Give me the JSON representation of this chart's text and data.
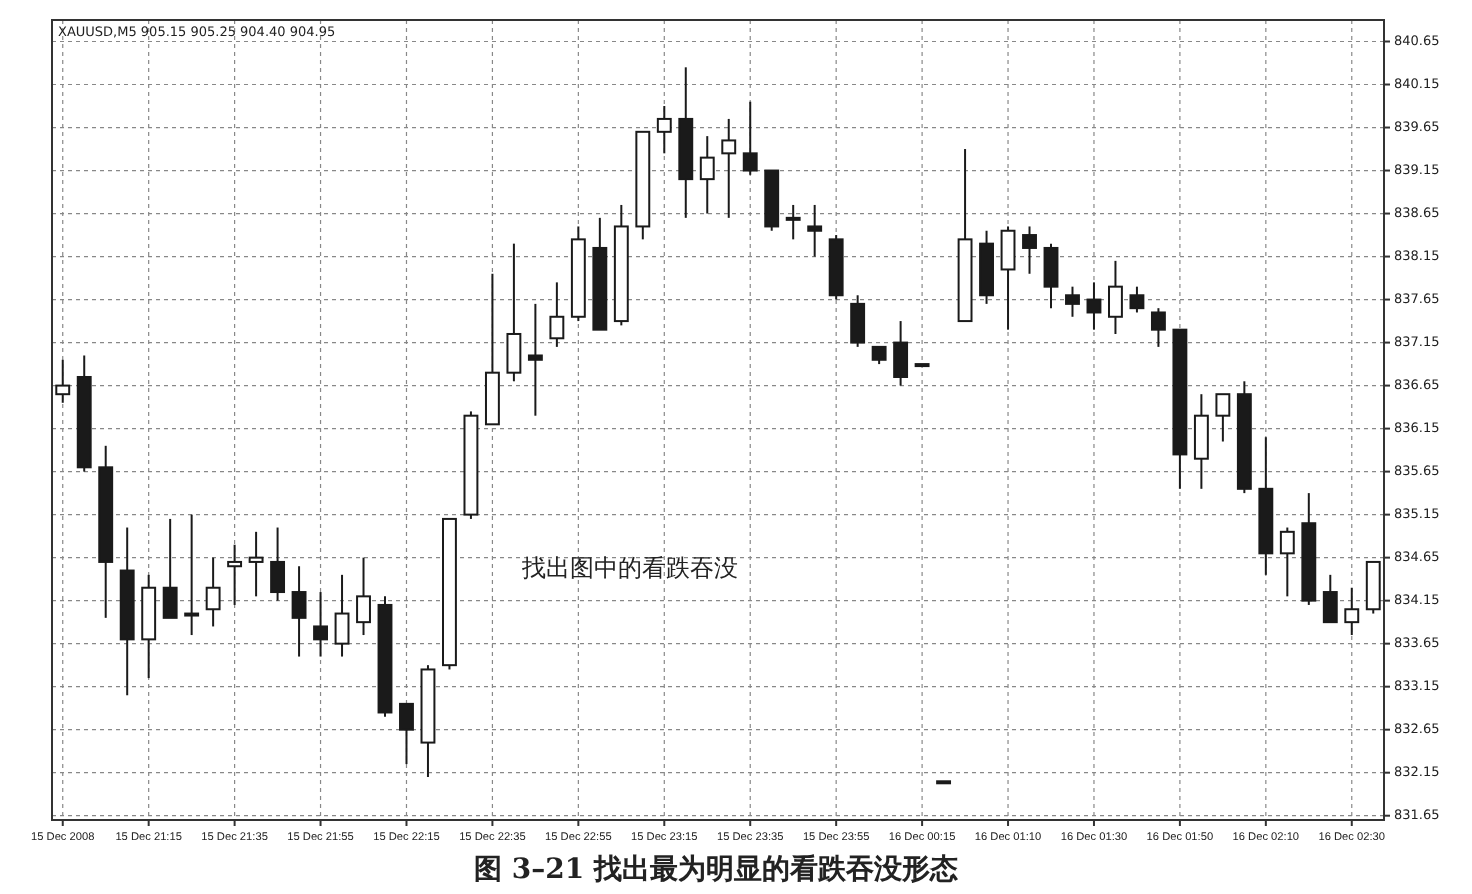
{
  "chart_data": {
    "type": "candlestick",
    "title": "XAUUSD,M5  905.15 905.25 904.40 904.95",
    "annotations": [
      "找出图中的看跌吞没",
      "图 3–21    找出最为明显的看跌吞没形态"
    ],
    "categories": [
      "15 Dec 2008",
      null,
      null,
      null,
      "15 Dec 21:15",
      null,
      null,
      null,
      "15 Dec 21:35",
      null,
      null,
      null,
      "15 Dec 21:55",
      null,
      null,
      null,
      "15 Dec 22:15",
      null,
      null,
      null,
      "15 Dec 22:35",
      null,
      null,
      null,
      "15 Dec 22:55",
      null,
      null,
      null,
      "15 Dec 23:15",
      null,
      null,
      null,
      "15 Dec 23:35",
      null,
      null,
      null,
      "15 Dec 23:55",
      null,
      null,
      null,
      "16 Dec 00:15",
      null,
      null,
      null,
      "16 Dec 01:10",
      null,
      null,
      null,
      "16 Dec 01:30",
      null,
      null,
      null,
      "16 Dec 01:50",
      null,
      null,
      null,
      "16 Dec 02:10",
      null,
      null,
      null,
      "16 Dec 02:30",
      null
    ],
    "ohlc": [
      [
        836.55,
        836.95,
        836.45,
        836.65
      ],
      [
        836.75,
        837.0,
        835.65,
        835.7
      ],
      [
        835.7,
        835.95,
        833.95,
        834.6
      ],
      [
        834.5,
        835.0,
        833.05,
        833.7
      ],
      [
        833.7,
        834.45,
        833.25,
        834.3
      ],
      [
        834.3,
        835.1,
        833.95,
        833.95
      ],
      [
        834.0,
        835.15,
        833.75,
        834.0
      ],
      [
        834.05,
        834.65,
        833.85,
        834.3
      ],
      [
        834.55,
        834.8,
        834.1,
        834.6
      ],
      [
        834.6,
        834.95,
        834.2,
        834.65
      ],
      [
        834.6,
        835.0,
        834.15,
        834.25
      ],
      [
        834.25,
        834.55,
        833.5,
        833.95
      ],
      [
        833.85,
        834.25,
        833.5,
        833.7
      ],
      [
        833.65,
        834.45,
        833.5,
        834.0
      ],
      [
        833.9,
        834.65,
        833.75,
        834.2
      ],
      [
        834.1,
        834.2,
        832.8,
        832.85
      ],
      [
        832.95,
        832.95,
        832.25,
        832.65
      ],
      [
        832.5,
        833.4,
        832.1,
        833.35
      ],
      [
        833.4,
        835.1,
        833.35,
        835.1
      ],
      [
        835.15,
        836.35,
        835.1,
        836.3
      ],
      [
        836.2,
        837.95,
        836.2,
        836.8
      ],
      [
        836.8,
        838.3,
        836.7,
        837.25
      ],
      [
        837.0,
        837.6,
        836.3,
        836.95
      ],
      [
        837.2,
        837.85,
        837.1,
        837.45
      ],
      [
        837.45,
        838.5,
        837.4,
        838.35
      ],
      [
        838.25,
        838.6,
        837.3,
        837.3
      ],
      [
        837.4,
        838.75,
        837.35,
        838.5
      ],
      [
        838.5,
        839.6,
        838.35,
        839.6
      ],
      [
        839.6,
        839.9,
        839.35,
        839.75
      ],
      [
        839.75,
        840.35,
        838.6,
        839.05
      ],
      [
        839.05,
        839.55,
        838.65,
        839.3
      ],
      [
        839.35,
        839.75,
        838.6,
        839.5
      ],
      [
        839.35,
        839.95,
        839.1,
        839.15
      ],
      [
        839.15,
        839.15,
        838.45,
        838.5
      ],
      [
        838.6,
        838.75,
        838.35,
        838.6
      ],
      [
        838.5,
        838.75,
        838.15,
        838.45
      ],
      [
        838.35,
        838.4,
        837.65,
        837.7
      ],
      [
        837.6,
        837.7,
        837.1,
        837.15
      ],
      [
        837.1,
        837.1,
        836.9,
        836.95
      ],
      [
        837.15,
        837.4,
        836.65,
        836.75
      ],
      [
        836.9,
        836.9,
        836.9,
        836.9
      ],
      [
        832.05,
        832.05,
        832.05,
        832.05
      ],
      [
        837.4,
        839.4,
        837.4,
        838.35
      ],
      [
        838.3,
        838.45,
        837.6,
        837.7
      ],
      [
        838.0,
        838.5,
        837.3,
        838.45
      ],
      [
        838.4,
        838.5,
        837.95,
        838.25
      ],
      [
        838.25,
        838.3,
        837.55,
        837.8
      ],
      [
        837.7,
        837.8,
        837.45,
        837.6
      ],
      [
        837.65,
        837.85,
        837.3,
        837.5
      ],
      [
        837.45,
        838.1,
        837.25,
        837.8
      ],
      [
        837.7,
        837.8,
        837.5,
        837.55
      ],
      [
        837.5,
        837.55,
        837.1,
        837.3
      ],
      [
        837.3,
        837.3,
        835.45,
        835.85
      ],
      [
        835.8,
        836.55,
        835.45,
        836.3
      ],
      [
        836.3,
        836.55,
        836.0,
        836.55
      ],
      [
        836.55,
        836.7,
        835.4,
        835.45
      ],
      [
        835.45,
        836.05,
        834.45,
        834.7
      ],
      [
        834.7,
        835.0,
        834.2,
        834.95
      ],
      [
        835.05,
        835.4,
        834.1,
        834.15
      ],
      [
        834.25,
        834.45,
        833.9,
        833.9
      ],
      [
        833.9,
        834.3,
        833.75,
        834.05
      ],
      [
        834.05,
        834.6,
        834.0,
        834.6
      ]
    ],
    "color": "#1a1a1a",
    "ylim": [
      831.6,
      840.9
    ],
    "yticks": [
      831.65,
      832.15,
      832.65,
      833.15,
      833.65,
      834.15,
      834.65,
      835.15,
      835.65,
      836.15,
      836.65,
      837.15,
      837.65,
      838.15,
      838.65,
      839.15,
      839.65,
      840.15,
      840.65
    ],
    "grid": true
  }
}
